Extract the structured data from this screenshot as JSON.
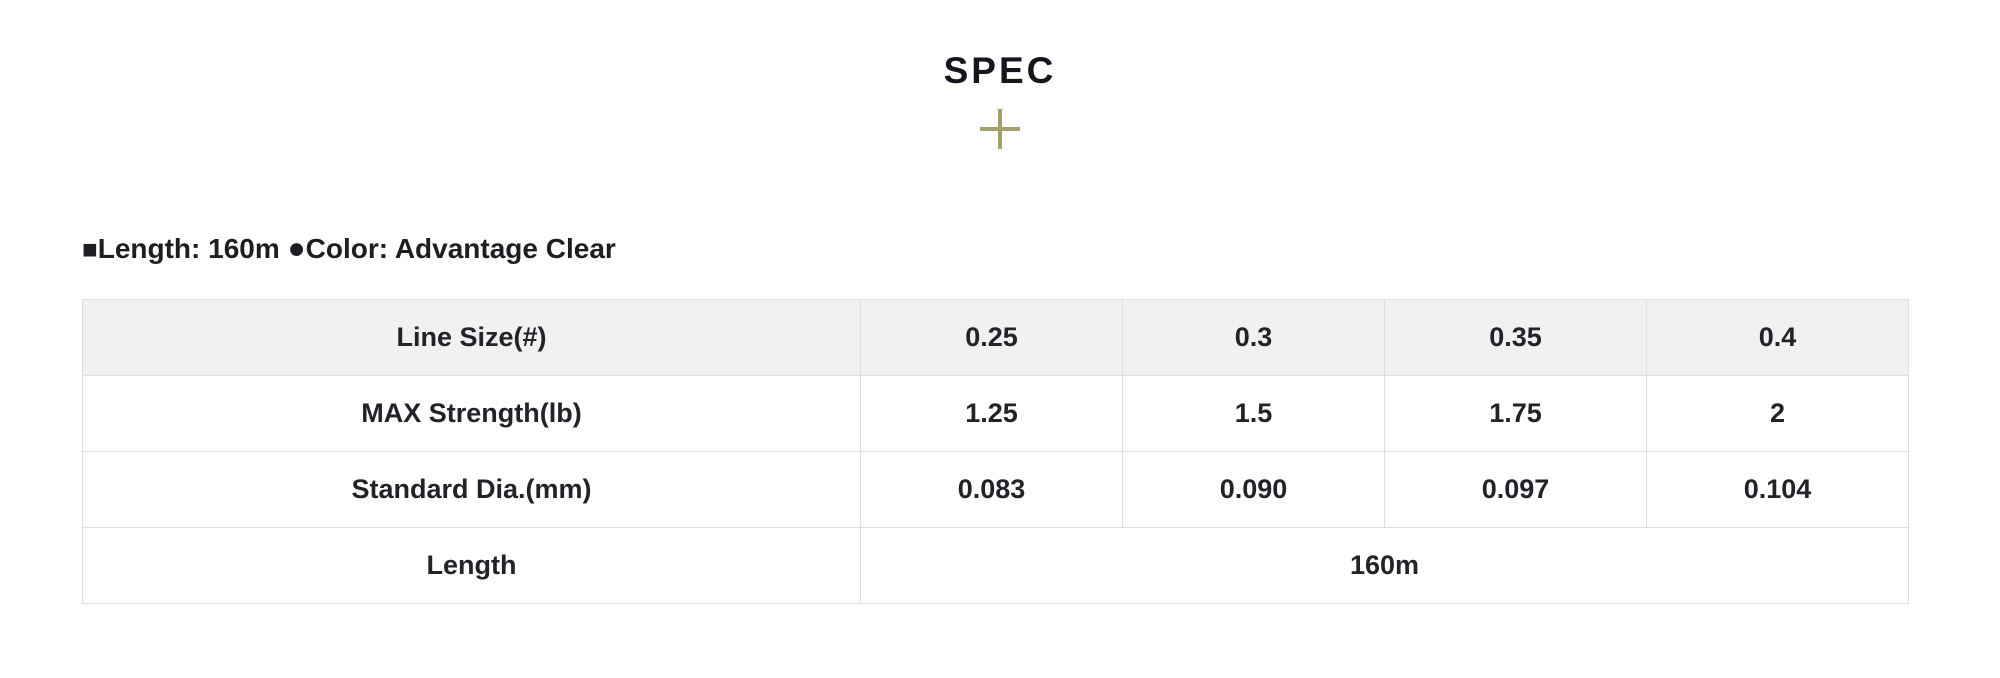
{
  "header": {
    "title": "SPEC",
    "plus_icon": "+",
    "accent_color": "#a3a266"
  },
  "spec_info": {
    "square_bullet": "■",
    "length_label": "Length: 160m",
    "circle_bullet": "●",
    "color_label": "Color: Advantage Clear",
    "separator": " "
  },
  "table": {
    "header_bg": "#f1f1f1",
    "border_color": "#dedede",
    "header_row": {
      "label": "Line Size(#)",
      "values": [
        "0.25",
        "0.3",
        "0.35",
        "0.4"
      ]
    },
    "rows": [
      {
        "label": "MAX Strength(lb)",
        "values": [
          "1.25",
          "1.5",
          "1.75",
          "2"
        ]
      },
      {
        "label": "Standard Dia.(mm)",
        "values": [
          "0.083",
          "0.090",
          "0.097",
          "0.104"
        ]
      }
    ],
    "merged_row": {
      "label": "Length",
      "value": "160m"
    }
  }
}
